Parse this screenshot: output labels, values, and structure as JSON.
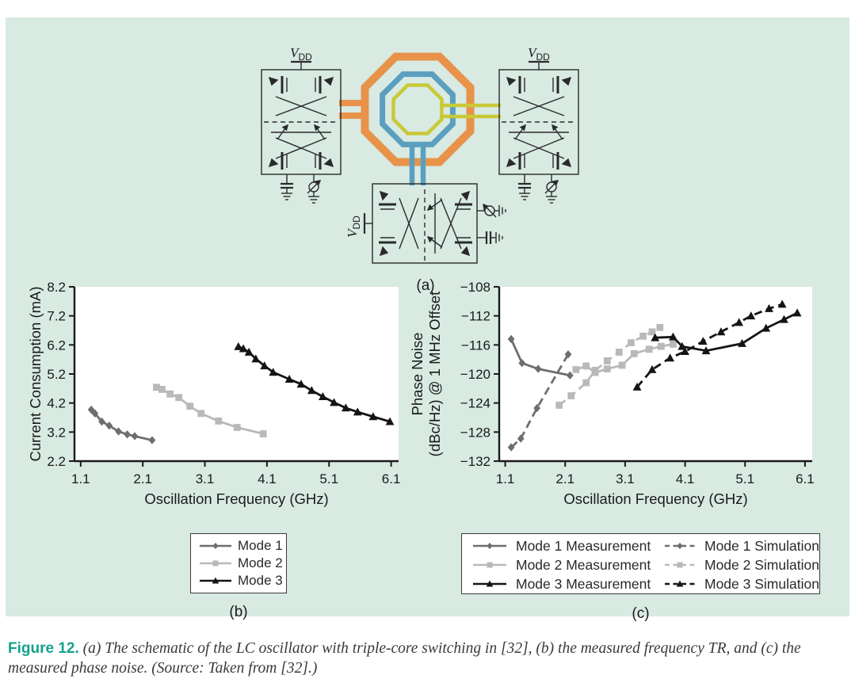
{
  "panel": {
    "bg": "#d8eae2"
  },
  "schematic": {
    "vdd": "V",
    "vdd_sub": "DD",
    "label": "(a)",
    "coil_colors": {
      "outer": "#e8924a",
      "middle": "#5b9fc0",
      "inner": "#c9c937"
    }
  },
  "chart_data": [
    {
      "id": "chart-b",
      "type": "line",
      "title": "",
      "xlabel": "Oscillation Frequency (GHz)",
      "ylabel": "Current Consumption (mA)",
      "xlim": [
        1.0,
        6.22
      ],
      "ylim": [
        2.2,
        8.2
      ],
      "grid": false,
      "xticks": [
        1.1,
        2.1,
        3.1,
        4.1,
        5.1,
        6.1
      ],
      "xtick_labels": [
        "1.1",
        "2.1",
        "3.1",
        "4.1",
        "5.1",
        "6.1"
      ],
      "yticks": [
        2.2,
        3.2,
        4.2,
        5.2,
        6.2,
        7.2,
        8.2
      ],
      "ytick_labels": [
        "2.2",
        "3.2",
        "4.2",
        "5.2",
        "6.2",
        "7.2",
        "8.2"
      ],
      "series": [
        {
          "name": "Mode 1",
          "marker": "diamond",
          "color": "#6e6e6e",
          "dash": false,
          "points": [
            [
              1.27,
              3.97
            ],
            [
              1.33,
              3.84
            ],
            [
              1.44,
              3.56
            ],
            [
              1.56,
              3.42
            ],
            [
              1.71,
              3.22
            ],
            [
              1.85,
              3.12
            ],
            [
              1.97,
              3.06
            ],
            [
              2.25,
              2.92
            ]
          ]
        },
        {
          "name": "Mode 2",
          "marker": "square",
          "color": "#b9b9b9",
          "dash": false,
          "points": [
            [
              2.32,
              4.74
            ],
            [
              2.41,
              4.67
            ],
            [
              2.54,
              4.51
            ],
            [
              2.68,
              4.39
            ],
            [
              2.86,
              4.09
            ],
            [
              3.04,
              3.84
            ],
            [
              3.32,
              3.58
            ],
            [
              3.62,
              3.36
            ],
            [
              4.04,
              3.14
            ]
          ]
        },
        {
          "name": "Mode 3",
          "marker": "triangle",
          "color": "#141414",
          "dash": false,
          "points": [
            [
              3.64,
              6.14
            ],
            [
              3.72,
              6.07
            ],
            [
              3.81,
              5.95
            ],
            [
              3.92,
              5.72
            ],
            [
              4.06,
              5.48
            ],
            [
              4.2,
              5.26
            ],
            [
              4.46,
              5.02
            ],
            [
              4.65,
              4.85
            ],
            [
              4.82,
              4.63
            ],
            [
              5.0,
              4.42
            ],
            [
              5.18,
              4.22
            ],
            [
              5.37,
              4.03
            ],
            [
              5.56,
              3.89
            ],
            [
              5.81,
              3.73
            ],
            [
              6.08,
              3.56
            ]
          ]
        }
      ]
    },
    {
      "id": "chart-c",
      "type": "line",
      "title": "",
      "xlabel": "Oscillation Frequency (GHz)",
      "ylabel_lines": [
        "Phase Noise",
        "(dBc/Hz) @ 1 MHz Offset"
      ],
      "xlim": [
        1.0,
        6.22
      ],
      "ylim": [
        -132,
        -108
      ],
      "grid": false,
      "xticks": [
        1.1,
        2.1,
        3.1,
        4.1,
        5.1,
        6.1
      ],
      "xtick_labels": [
        "1.1",
        "2.1",
        "3.1",
        "4.1",
        "5.1",
        "6.1"
      ],
      "yticks": [
        -132,
        -128,
        -124,
        -120,
        -116,
        -112,
        -108
      ],
      "ytick_labels": [
        "−132",
        "−128",
        "−124",
        "−120",
        "−116",
        "−112",
        "−108"
      ],
      "series": [
        {
          "name": "Mode 2 Simulation",
          "marker": "square",
          "color": "#b9b9b9",
          "dash": true,
          "points": [
            [
              2.0,
              -124.3
            ],
            [
              2.2,
              -123.0
            ],
            [
              2.45,
              -121.2
            ],
            [
              2.6,
              -119.5
            ],
            [
              2.8,
              -118.2
            ],
            [
              3.0,
              -117.0
            ],
            [
              3.2,
              -115.7
            ],
            [
              3.4,
              -114.8
            ],
            [
              3.55,
              -114.2
            ],
            [
              3.68,
              -113.6
            ]
          ]
        },
        {
          "name": "Mode 2 Measurement",
          "marker": "square",
          "color": "#b9b9b9",
          "dash": false,
          "points": [
            [
              2.28,
              -119.4
            ],
            [
              2.45,
              -118.9
            ],
            [
              2.6,
              -119.8
            ],
            [
              2.8,
              -119.3
            ],
            [
              3.05,
              -118.8
            ],
            [
              3.25,
              -117.2
            ],
            [
              3.5,
              -116.6
            ],
            [
              3.7,
              -116.2
            ],
            [
              3.9,
              -115.9
            ]
          ]
        },
        {
          "name": "Mode 1 Simulation",
          "marker": "diamond",
          "color": "#6e6e6e",
          "dash": true,
          "points": [
            [
              1.2,
              -130.1
            ],
            [
              1.36,
              -128.9
            ],
            [
              1.63,
              -124.7
            ],
            [
              2.15,
              -117.3
            ]
          ]
        },
        {
          "name": "Mode 1 Measurement",
          "marker": "diamond",
          "color": "#6e6e6e",
          "dash": false,
          "points": [
            [
              1.2,
              -115.2
            ],
            [
              1.38,
              -118.5
            ],
            [
              1.65,
              -119.3
            ],
            [
              2.18,
              -120.2
            ]
          ]
        },
        {
          "name": "Mode 3 Simulation",
          "marker": "triangle",
          "color": "#141414",
          "dash": true,
          "points": [
            [
              3.3,
              -121.8
            ],
            [
              3.55,
              -119.4
            ],
            [
              3.85,
              -117.8
            ],
            [
              4.1,
              -116.9
            ],
            [
              4.4,
              -115.5
            ],
            [
              4.7,
              -114.2
            ],
            [
              5.0,
              -112.9
            ],
            [
              5.2,
              -112.0
            ],
            [
              5.5,
              -111.0
            ],
            [
              5.72,
              -110.4
            ]
          ]
        },
        {
          "name": "Mode 3 Measurement",
          "marker": "triangle",
          "color": "#141414",
          "dash": false,
          "points": [
            [
              3.6,
              -115.0
            ],
            [
              3.9,
              -114.9
            ],
            [
              4.05,
              -116.2
            ],
            [
              4.45,
              -116.8
            ],
            [
              5.05,
              -115.8
            ],
            [
              5.45,
              -113.7
            ],
            [
              5.75,
              -112.5
            ],
            [
              5.97,
              -111.6
            ]
          ]
        }
      ]
    }
  ],
  "legends": {
    "b": {
      "caption": "(b)",
      "items": [
        {
          "label": "Mode 1"
        },
        {
          "label": "Mode 2"
        },
        {
          "label": "Mode 3"
        }
      ]
    },
    "c": {
      "caption": "(c)",
      "rows": [
        {
          "meas": "Mode 1 Measurement",
          "sim": "Mode 1 Simulation"
        },
        {
          "meas": "Mode 2 Measurement",
          "sim": "Mode 2 Simulation"
        },
        {
          "meas": "Mode 3 Measurement",
          "sim": "Mode 3 Simulation"
        }
      ]
    }
  },
  "caption": {
    "prefix": "Figure 12.",
    "body": "(a) The schematic of the LC oscillator with triple-core switching in [32], (b) the measured frequency TR, and (c) the measured phase noise. (Source: Taken from [32].)",
    "accent": "#16a18c"
  }
}
